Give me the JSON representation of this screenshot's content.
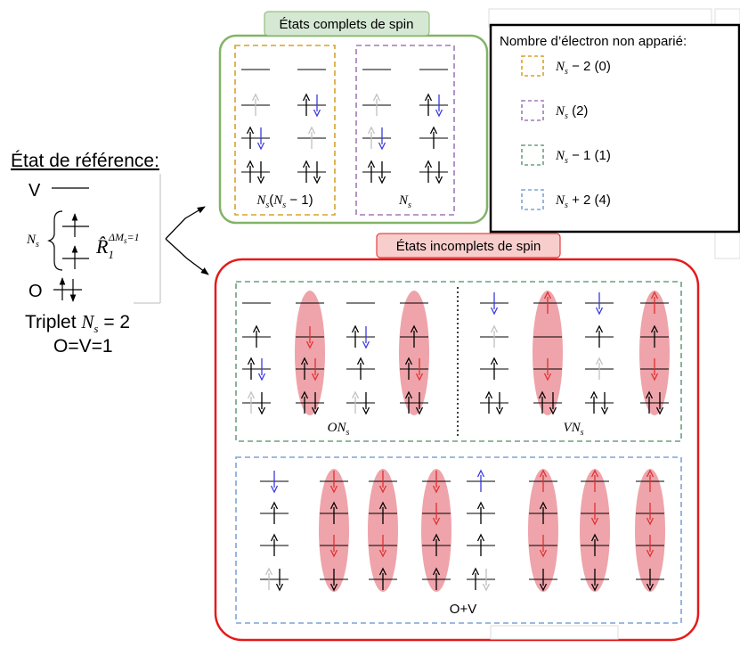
{
  "reference": {
    "title": "État de référence:",
    "v_label": "V",
    "o_label": "O",
    "ns_label": "N",
    "ns_sub": "s",
    "operator": "R̂",
    "operator_sub": "1",
    "operator_sup": "ΔM",
    "operator_sup_sub": "s",
    "operator_sup_tail": "=1",
    "triplet_prefix": "Triplet ",
    "triplet_var": "N",
    "triplet_sub": "s",
    "triplet_tail": " = 2",
    "ov_line": "O=V=1"
  },
  "complete_states": {
    "title": "États complets de spin",
    "group1_label": {
      "a": "N",
      "b": "s",
      "c": "(",
      "d": "N",
      "e": "s",
      "f": " − 1)"
    },
    "group2_label": {
      "a": "N",
      "b": "s"
    }
  },
  "legend": {
    "title": "Nombre d’électron non apparié:",
    "items": [
      {
        "var": "N",
        "sub": "s",
        "tail": " − 2  (0)",
        "color": "#d9a22a"
      },
      {
        "var": "N",
        "sub": "s",
        "tail": " (2)",
        "color": "#a07ab8"
      },
      {
        "var": "N",
        "sub": "s",
        "tail": " − 1  (1)",
        "color": "#6aa07f"
      },
      {
        "var": "N",
        "sub": "s",
        "tail": " + 2  (4)",
        "color": "#7fa3d6"
      }
    ]
  },
  "incomplete_states": {
    "title": "États incomplets de spin",
    "on_label": {
      "a": "ON",
      "b": "s"
    },
    "vn_label": {
      "a": "VN",
      "b": "s"
    },
    "ov_label": "O+V"
  },
  "colors": {
    "complete_border": "#82b366",
    "complete_title_bg": "#d5e8d4",
    "incomplete_border": "#e31a1c",
    "incomplete_title_bg": "#f8cecc",
    "highlight": "#e8858d",
    "spin_blue": "#3a3ae0",
    "spin_red": "#e03030",
    "spin_gray": "#c0c0c0"
  }
}
